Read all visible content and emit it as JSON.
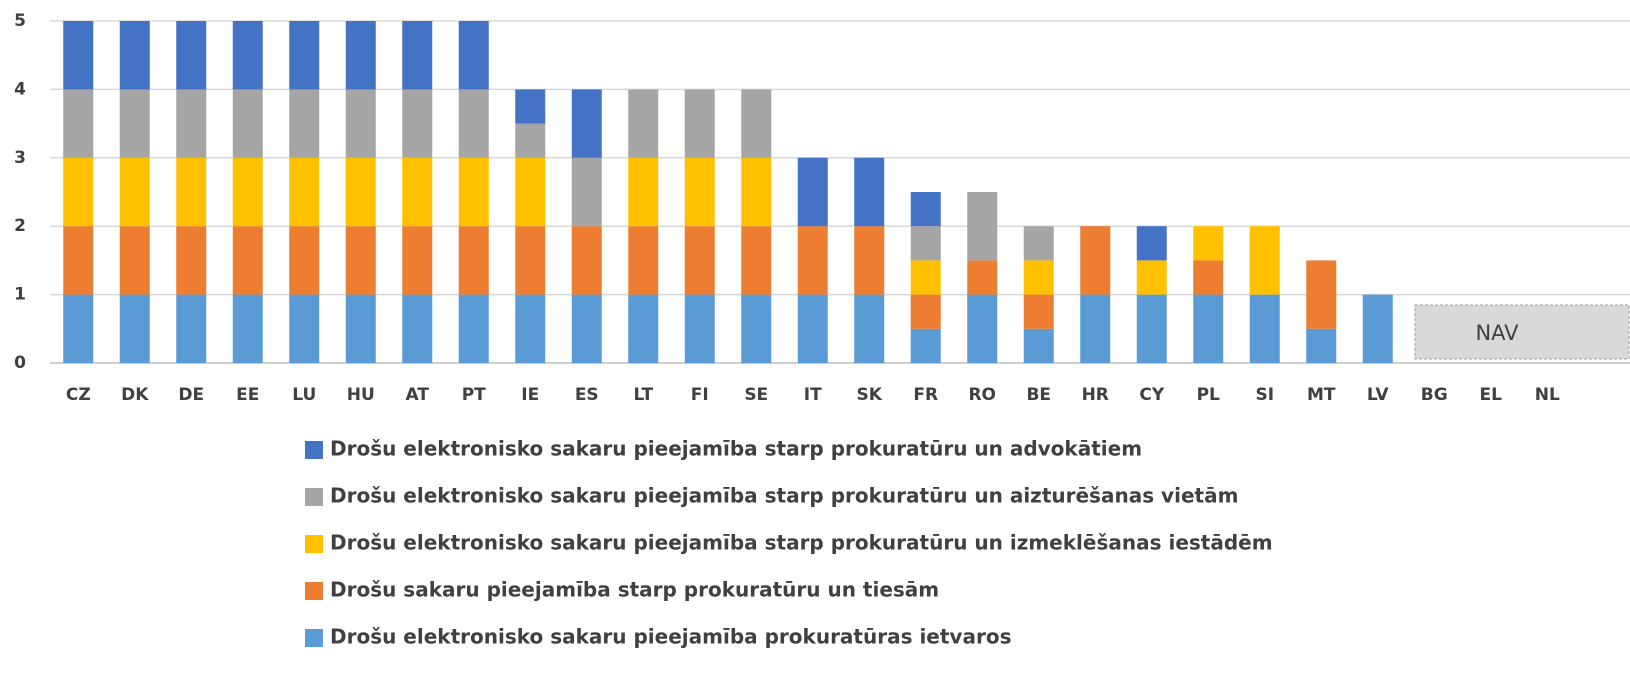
{
  "chart_data": {
    "type": "stacked_bar",
    "categories": [
      "CZ",
      "DK",
      "DE",
      "EE",
      "LU",
      "HU",
      "AT",
      "PT",
      "IE",
      "ES",
      "LT",
      "FI",
      "SE",
      "IT",
      "SK",
      "FR",
      "RO",
      "BE",
      "HR",
      "CY",
      "PL",
      "SI",
      "MT",
      "LV",
      "BG",
      "EL",
      "NL"
    ],
    "series": [
      {
        "name": "Drošu elektronisko sakaru pieejamība starp prokuratūru un advokātiem",
        "color": "#4472c4",
        "values": [
          1,
          1,
          1,
          1,
          1,
          1,
          1,
          1,
          0.5,
          1,
          0,
          0,
          0,
          1,
          1,
          0.5,
          0,
          0,
          0,
          0.5,
          0,
          0,
          0,
          0,
          null,
          null,
          null
        ]
      },
      {
        "name": "Drošu elektronisko sakaru pieejamība starp prokuratūru un aizturēšanas vietām",
        "color": "#a5a5a5",
        "values": [
          1,
          1,
          1,
          1,
          1,
          1,
          1,
          1,
          0.5,
          1,
          1,
          1,
          1,
          0,
          0,
          0.5,
          1,
          0.5,
          0,
          0,
          0,
          0,
          0,
          0,
          null,
          null,
          null
        ]
      },
      {
        "name": "Drošu elektronisko sakaru pieejamība starp prokuratūru un izmeklēšanas iestādēm",
        "color": "#ffc000",
        "values": [
          1,
          1,
          1,
          1,
          1,
          1,
          1,
          1,
          1,
          0,
          1,
          1,
          1,
          0,
          0,
          0.5,
          0,
          0.5,
          0,
          0.5,
          0.5,
          1,
          0,
          0,
          null,
          null,
          null
        ]
      },
      {
        "name": "Drošu sakaru pieejamība starp prokuratūru un tiesām",
        "color": "#ed7d31",
        "values": [
          1,
          1,
          1,
          1,
          1,
          1,
          1,
          1,
          1,
          1,
          1,
          1,
          1,
          1,
          1,
          0.5,
          0.5,
          0.5,
          1,
          0,
          0.5,
          0,
          1,
          0,
          null,
          null,
          null
        ]
      },
      {
        "name": "Drošu elektronisko sakaru pieejamība prokuratūras ietvaros",
        "color": "#5b9bd5",
        "values": [
          1,
          1,
          1,
          1,
          1,
          1,
          1,
          1,
          1,
          1,
          1,
          1,
          1,
          1,
          1,
          0.5,
          1,
          0.5,
          1,
          1,
          1,
          1,
          0.5,
          1,
          null,
          null,
          null
        ]
      }
    ],
    "ylim": [
      0,
      5
    ],
    "yticks": [
      0,
      1,
      2,
      3,
      4,
      5
    ],
    "grid": true,
    "annotation": "NAV"
  }
}
